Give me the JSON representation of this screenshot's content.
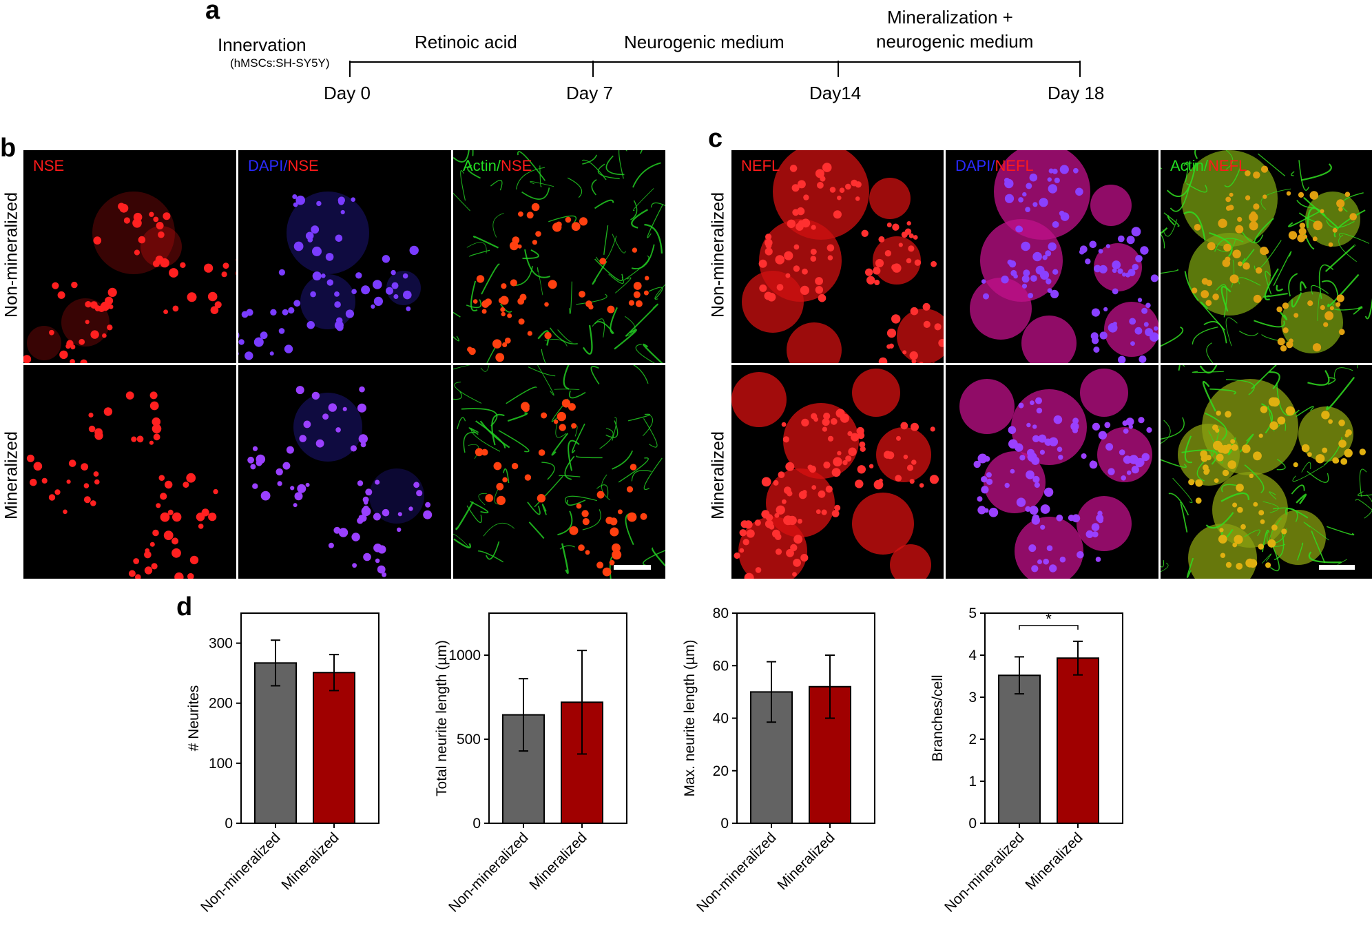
{
  "panel_a": {
    "letter": "a",
    "innervation_label": "Innervation",
    "innervation_sub": "(hMSCs:SH-SY5Y)",
    "phases": [
      "Retinoic acid",
      "Neurogenic medium",
      "Mineralization +",
      "neurogenic medium"
    ],
    "days": [
      "Day 0",
      "Day 7",
      "Day14",
      "Day 18"
    ]
  },
  "panel_b": {
    "letter": "b",
    "rows": [
      "Non-mineralized",
      "Mineralized"
    ],
    "stain_nse": "NSE",
    "stain_dapi": "DAPI",
    "stain_actin": "Actin",
    "slash": "/"
  },
  "panel_c": {
    "letter": "c",
    "rows": [
      "Non-mineralized",
      "Mineralized"
    ],
    "stain_nefl": "NEFL",
    "stain_dapi": "DAPI",
    "stain_actin": "Actin",
    "slash": "/"
  },
  "colors": {
    "red_stain": "#ff1a1a",
    "blue_stain": "#2a2aff",
    "green_stain": "#22dd22",
    "bar_grey": "#636363",
    "bar_red": "#a00000"
  },
  "panel_d": {
    "letter": "d"
  },
  "chart_data": [
    {
      "type": "bar",
      "categories": [
        "Non-mineralized",
        "Mineralized"
      ],
      "values": [
        267,
        251
      ],
      "errors": [
        38,
        30
      ],
      "ylabel": "# Neurites",
      "ylim": [
        0,
        350
      ],
      "yticks": [
        0,
        100,
        200,
        300
      ],
      "colors": [
        "#636363",
        "#a00000"
      ],
      "significance": ""
    },
    {
      "type": "bar",
      "categories": [
        "Non-mineralized",
        "Mineralized"
      ],
      "values": [
        645,
        720
      ],
      "errors": [
        215,
        308
      ],
      "ylabel": "Total neurite length (µm)",
      "ylim": [
        0,
        1250
      ],
      "yticks": [
        0,
        500,
        1000
      ],
      "colors": [
        "#636363",
        "#a00000"
      ],
      "significance": ""
    },
    {
      "type": "bar",
      "categories": [
        "Non-mineralized",
        "Mineralized"
      ],
      "values": [
        50,
        52
      ],
      "errors": [
        11.5,
        12
      ],
      "ylabel": "Max. neurite length (µm)",
      "ylim": [
        0,
        80
      ],
      "yticks": [
        0,
        20,
        40,
        60,
        80
      ],
      "colors": [
        "#636363",
        "#a00000"
      ],
      "significance": ""
    },
    {
      "type": "bar",
      "categories": [
        "Non-mineralized",
        "Mineralized"
      ],
      "values": [
        3.52,
        3.93
      ],
      "errors": [
        0.44,
        0.4
      ],
      "ylabel": "Branches/cell",
      "ylim": [
        0,
        5
      ],
      "yticks": [
        0,
        1,
        2,
        3,
        4,
        5
      ],
      "colors": [
        "#636363",
        "#a00000"
      ],
      "significance": "*"
    }
  ]
}
